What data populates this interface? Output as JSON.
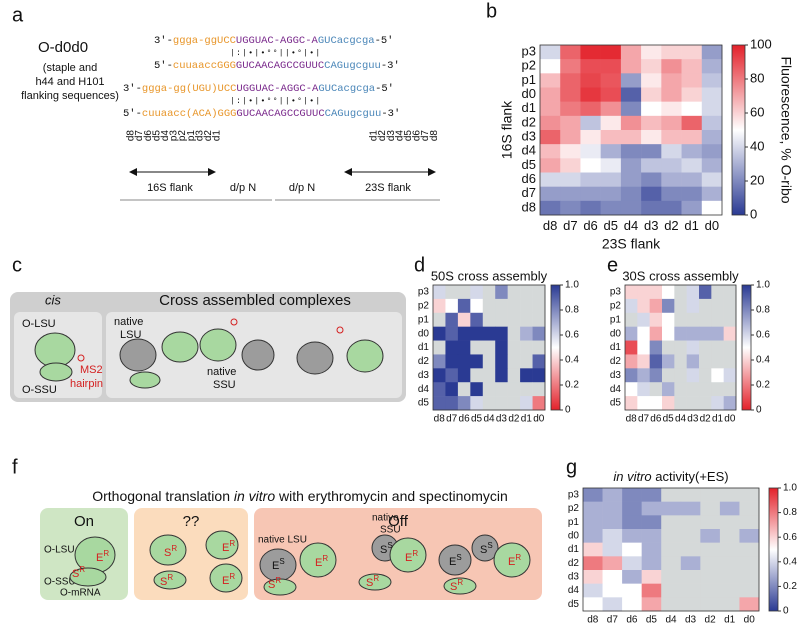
{
  "panels": [
    "a",
    "b",
    "c",
    "d",
    "e",
    "f",
    "g"
  ],
  "diagram_a": {
    "name": "O-d0d0",
    "note": [
      "(staple and",
      "h44 and H101",
      "flanking sequences)"
    ],
    "seq1": [
      "3'-",
      "ggga-ggUCC",
      "UGGUAC-AGGC-A",
      "GUCacgcga",
      "-5'"
    ],
    "pairs1": "|:|•|•°°||•°|•|",
    "seq2": [
      "5'-",
      "cuuaaccGGG",
      "GUCAACAGCCGUUC",
      "CAGugcguu",
      "-3'"
    ],
    "seq3": [
      "3'-",
      "ggga-gg(UGU)UCC",
      "UGGUAC-AGGC-A",
      "GUCacgcga",
      "-5'"
    ],
    "pairs2": "|:|•|•°°||•°|•|",
    "seq4": [
      "5'-",
      "cuuaacc(ACA)GGG",
      "GUCAACAGCCGUUC",
      "CAGugcguu",
      "-3'"
    ],
    "flank_left": [
      "d8",
      "d7",
      "d6",
      "d5",
      "d4",
      "p3",
      "p2",
      "p1",
      "d3",
      "d2",
      "d1"
    ],
    "flank_right": [
      "d1",
      "d2",
      "d3",
      "d4",
      "d5",
      "d6",
      "d7",
      "d8"
    ],
    "flank_16s": "16S flank",
    "dp": [
      "d/p N",
      "d/p N"
    ],
    "flank_23s": "23S flank"
  },
  "diagram_c": {
    "cis": "cis",
    "cross": "Cross assembled complexes",
    "o_lsu": "O-LSU",
    "o_ssu": "O-SSU",
    "ms2": [
      "MS2",
      "hairpin"
    ],
    "native_lsu": [
      "native",
      "LSU"
    ],
    "native_ssu": [
      "native",
      "SSU"
    ]
  },
  "diagram_f": {
    "title": [
      "Orthogonal translation ",
      "in vitro",
      " with erythromycin and spectinomycin"
    ],
    "on": "On",
    "unknown": "??",
    "off": "Off",
    "o_lsu": "O-LSU",
    "o_ssu": "O-SSU",
    "o_mrna": "O-mRNA",
    "native_lsu": "native LSU",
    "native_ssu": [
      "native",
      "SSU"
    ],
    "e": "E",
    "s": "S",
    "r": "R",
    "ss": "S"
  },
  "chart_data": [
    {
      "type": "heatmap",
      "x_label": "23S flank",
      "y_label": "16S flank",
      "colorbar_label": "Fluorescence, % O-ribo",
      "x": [
        "d8",
        "d7",
        "d6",
        "d5",
        "d4",
        "d3",
        "d2",
        "d1",
        "d0"
      ],
      "y": [
        "p3",
        "p2",
        "p1",
        "d0",
        "d1",
        "d2",
        "d3",
        "d4",
        "d5",
        "d6",
        "d7",
        "d8"
      ],
      "values": [
        [
          40,
          85,
          98,
          98,
          70,
          55,
          60,
          60,
          25
        ],
        [
          50,
          80,
          90,
          90,
          70,
          60,
          75,
          65,
          30
        ],
        [
          65,
          85,
          92,
          88,
          25,
          55,
          70,
          65,
          35
        ],
        [
          70,
          85,
          95,
          90,
          10,
          60,
          70,
          60,
          40
        ],
        [
          70,
          80,
          85,
          75,
          20,
          50,
          55,
          50,
          40
        ],
        [
          75,
          70,
          35,
          55,
          75,
          65,
          70,
          85,
          35
        ],
        [
          85,
          70,
          55,
          65,
          65,
          55,
          65,
          65,
          30
        ],
        [
          65,
          55,
          45,
          30,
          20,
          20,
          40,
          30,
          25
        ],
        [
          70,
          60,
          50,
          45,
          25,
          35,
          35,
          40,
          30
        ],
        [
          40,
          40,
          35,
          35,
          25,
          20,
          30,
          30,
          40
        ],
        [
          25,
          25,
          25,
          25,
          20,
          10,
          20,
          20,
          30
        ],
        [
          15,
          20,
          15,
          20,
          20,
          15,
          15,
          25,
          50
        ]
      ],
      "clim": [
        0,
        100
      ],
      "cticks": [
        0,
        20,
        40,
        60,
        80,
        100
      ],
      "cmap": [
        "#2a3a93",
        "#ffffff",
        "#e3212a"
      ],
      "missing_color": "#d5d9d9"
    },
    {
      "type": "heatmap",
      "title": "50S cross assembly",
      "x": [
        "d8",
        "d7",
        "d6",
        "d5",
        "d4",
        "d3",
        "d2",
        "d1",
        "d0"
      ],
      "y": [
        "p3",
        "p2",
        "p1",
        "d0",
        "d1",
        "d2",
        "d3",
        "d4",
        "d5"
      ],
      "values": [
        [
          0.6,
          null,
          null,
          0.6,
          null,
          0.8,
          null,
          null,
          null
        ],
        [
          0.4,
          0.5,
          0.9,
          0.5,
          null,
          null,
          null,
          null,
          null
        ],
        [
          null,
          0.9,
          0.4,
          0.9,
          null,
          null,
          null,
          null,
          null
        ],
        [
          1.0,
          0.9,
          1.0,
          1.0,
          1.0,
          1.0,
          null,
          0.7,
          0.8
        ],
        [
          null,
          1.0,
          1.0,
          null,
          null,
          1.0,
          null,
          null,
          null
        ],
        [
          0.8,
          1.0,
          1.0,
          1.0,
          null,
          1.0,
          null,
          null,
          0.9
        ],
        [
          1.0,
          0.9,
          1.0,
          null,
          null,
          1.0,
          null,
          1.0,
          1.0
        ],
        [
          0.9,
          1.0,
          null,
          1.0,
          null,
          null,
          null,
          null,
          null
        ],
        [
          0.9,
          0.9,
          0.8,
          0.6,
          null,
          null,
          null,
          0.6,
          0.2
        ]
      ],
      "clim": [
        0,
        1
      ],
      "cticks": [
        0,
        0.2,
        0.4,
        0.6,
        0.8,
        {
          "value": 1,
          "label": "1.0"
        }
      ],
      "cmap": [
        "#e3212a",
        "#ffffff",
        "#2a3a93"
      ],
      "missing_color": "#d5d9d9"
    },
    {
      "type": "heatmap",
      "title": "30S cross assembly",
      "x": [
        "d8",
        "d7",
        "d6",
        "d5",
        "d4",
        "d3",
        "d2",
        "d1",
        "d0"
      ],
      "y": [
        "p3",
        "p2",
        "p1",
        "d0",
        "d1",
        "d2",
        "d3",
        "d4",
        "d5"
      ],
      "values": [
        [
          0.4,
          0.4,
          0.4,
          0.5,
          null,
          0.6,
          0.9,
          null,
          null
        ],
        [
          0.6,
          0.4,
          0.3,
          0.8,
          null,
          0.6,
          null,
          null,
          null
        ],
        [
          null,
          0.6,
          0.4,
          0.5,
          null,
          null,
          null,
          null,
          null
        ],
        [
          0.7,
          0.5,
          0.3,
          0.5,
          0.7,
          0.7,
          0.7,
          0.7,
          0.4
        ],
        [
          0.1,
          0.5,
          0.8,
          null,
          null,
          0.6,
          null,
          null,
          null
        ],
        [
          0.3,
          0.4,
          0.9,
          0.7,
          null,
          0.7,
          null,
          null,
          null
        ],
        [
          0.8,
          0.7,
          0.8,
          null,
          null,
          0.6,
          null,
          0.5,
          0.6
        ],
        [
          0.5,
          0.6,
          null,
          0.7,
          null,
          null,
          null,
          null,
          null
        ],
        [
          0.4,
          0.5,
          0.5,
          0.4,
          null,
          null,
          null,
          0.6,
          0.7
        ]
      ],
      "clim": [
        0,
        1
      ],
      "cticks": [
        0,
        0.2,
        0.4,
        0.6,
        0.8,
        {
          "value": 1,
          "label": "1.0"
        }
      ],
      "cmap": [
        "#e3212a",
        "#ffffff",
        "#2a3a93"
      ],
      "missing_color": "#d5d9d9"
    },
    {
      "type": "heatmap",
      "title_parts": [
        "in vitro",
        " activity(+ES)"
      ],
      "x": [
        "d8",
        "d7",
        "d6",
        "d5",
        "d4",
        "d3",
        "d2",
        "d1",
        "d0"
      ],
      "y": [
        "p3",
        "p2",
        "p1",
        "d0",
        "d1",
        "d2",
        "d3",
        "d4",
        "d5"
      ],
      "values": [
        [
          0.2,
          0.3,
          0.2,
          0.2,
          null,
          null,
          null,
          null,
          null
        ],
        [
          0.3,
          0.3,
          0.2,
          0.3,
          0.3,
          0.3,
          null,
          0.3,
          null
        ],
        [
          0.3,
          0.3,
          0.2,
          0.2,
          null,
          null,
          null,
          null,
          null
        ],
        [
          0.3,
          0.4,
          0.3,
          0.3,
          null,
          null,
          0.3,
          null,
          0.3
        ],
        [
          0.6,
          0.4,
          0.5,
          0.3,
          null,
          null,
          null,
          null,
          null
        ],
        [
          0.8,
          0.7,
          0.4,
          0.3,
          null,
          0.3,
          null,
          null,
          null
        ],
        [
          0.6,
          0.5,
          0.3,
          0.6,
          null,
          null,
          null,
          null,
          null
        ],
        [
          0.4,
          0.5,
          0.5,
          0.8,
          null,
          null,
          null,
          null,
          null
        ],
        [
          0.5,
          0.4,
          0.5,
          0.7,
          null,
          null,
          null,
          null,
          0.7
        ]
      ],
      "clim": [
        0,
        1
      ],
      "cticks": [
        0,
        0.2,
        0.4,
        0.6,
        0.8,
        {
          "value": 1,
          "label": "1.0"
        }
      ],
      "cmap": [
        "#2a3a93",
        "#ffffff",
        "#e3212a"
      ],
      "missing_color": "#d5d9d9"
    }
  ]
}
